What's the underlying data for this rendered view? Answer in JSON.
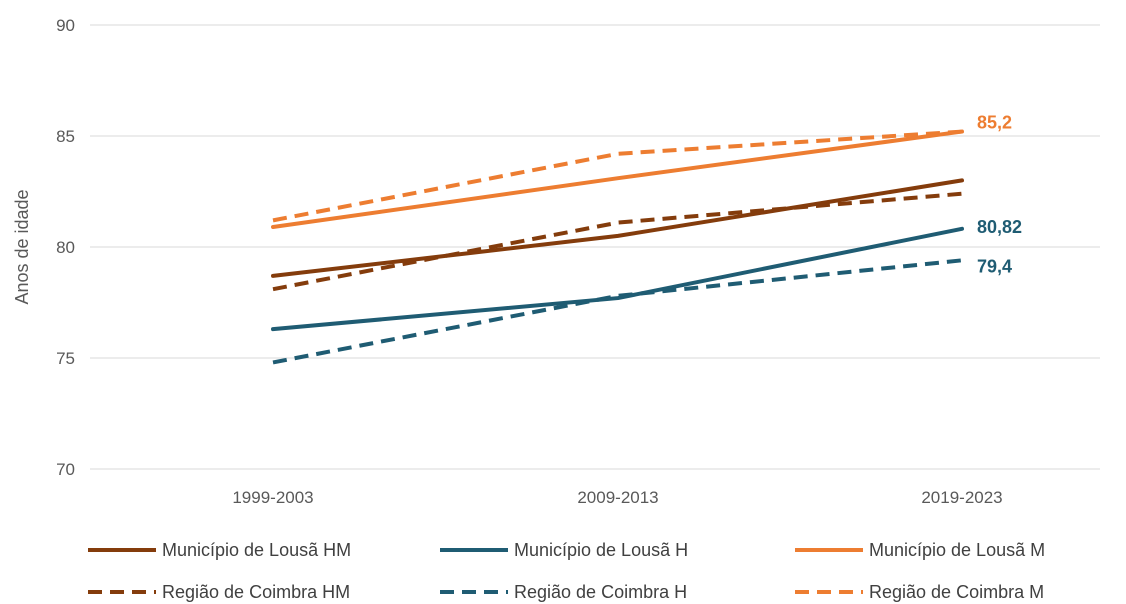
{
  "chart_data": {
    "type": "line",
    "categories": [
      "1999-2003",
      "2009-2013",
      "2019-2023"
    ],
    "ylabel": "Anos de idade",
    "ylim": [
      70,
      90
    ],
    "yticks": [
      70,
      75,
      80,
      85,
      90
    ],
    "grid": true,
    "legend_position": "bottom",
    "series": [
      {
        "name": "Município de Lousã HM",
        "values": [
          78.7,
          80.5,
          83.0
        ],
        "color": "#843C0C",
        "dash": "solid"
      },
      {
        "name": "Município de Lousã H",
        "values": [
          76.3,
          77.7,
          80.82
        ],
        "color": "#1F5C73",
        "dash": "solid",
        "end_label": "80,82"
      },
      {
        "name": "Município de Lousã M",
        "values": [
          80.9,
          83.1,
          85.2
        ],
        "color": "#ED7D31",
        "dash": "solid"
      },
      {
        "name": "Região de Coimbra HM",
        "values": [
          78.1,
          81.1,
          82.4
        ],
        "color": "#843C0C",
        "dash": "dashed"
      },
      {
        "name": "Região de Coimbra H",
        "values": [
          74.8,
          77.8,
          79.4
        ],
        "color": "#1F5C73",
        "dash": "dashed",
        "end_label": "79,4"
      },
      {
        "name": "Região de Coimbra M",
        "values": [
          81.2,
          84.2,
          85.2
        ],
        "color": "#ED7D31",
        "dash": "dashed",
        "end_label": "85,2"
      }
    ]
  }
}
